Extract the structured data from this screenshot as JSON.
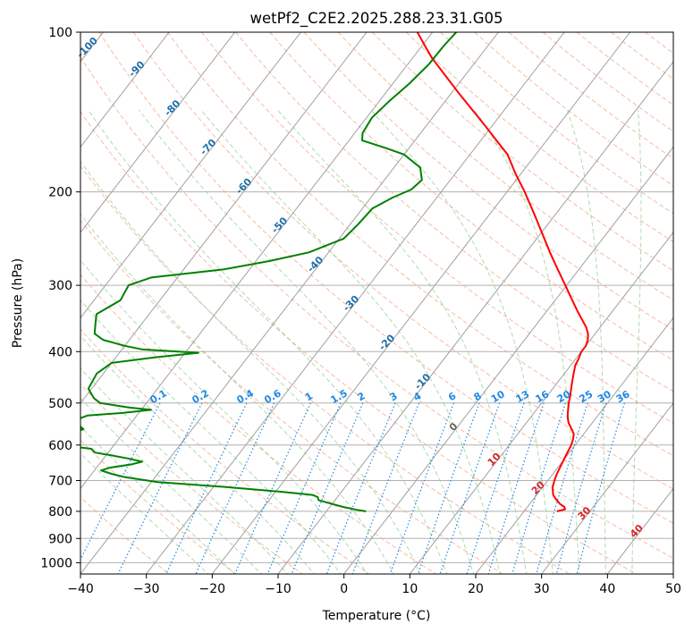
{
  "chart_data": {
    "type": "line",
    "title": "wetPf2_C2E2.2025.288.23.31.G05",
    "xlabel": "Temperature (°C)",
    "ylabel": "Pressure (hPa)",
    "xlim": [
      -40,
      50
    ],
    "ylim": [
      1050,
      100
    ],
    "y_scale": "log",
    "x_ticks": [
      "−40",
      "−30",
      "−20",
      "−10",
      "0",
      "10",
      "20",
      "30",
      "40",
      "50"
    ],
    "x_tick_values": [
      -40,
      -30,
      -20,
      -10,
      0,
      10,
      20,
      30,
      40,
      50
    ],
    "y_ticks": [
      "100",
      "200",
      "300",
      "400",
      "500",
      "600",
      "700",
      "800",
      "900",
      "1000"
    ],
    "y_tick_values": [
      100,
      200,
      300,
      400,
      500,
      600,
      700,
      800,
      900,
      1000
    ],
    "grid": true,
    "colors": {
      "temperature": "#ff0000",
      "dewpoint": "#008000",
      "isotherm": "#a0a0a0",
      "dry_adiabat": "#f4a582",
      "moist_adiabat": "#8fcb8f",
      "mixing_ratio": "#1e88e5",
      "isotherm_label": "#1f6fa8",
      "warm_label": "#d62728"
    },
    "series": [
      {
        "key": "temperature",
        "p": [
          800,
          793,
          785,
          775,
          760,
          745,
          720,
          700,
          680,
          660,
          640,
          620,
          600,
          585,
          572,
          560,
          545,
          530,
          515,
          500,
          485,
          470,
          455,
          440,
          425,
          412,
          400,
          390,
          380,
          370,
          360,
          350,
          335,
          320,
          300,
          280,
          260,
          240,
          220,
          200,
          185,
          170,
          160,
          150,
          140,
          130,
          120,
          112,
          106,
          100
        ],
        "t": [
          25.0,
          26.0,
          25.6,
          24.6,
          23.5,
          22.5,
          21.5,
          21.0,
          20.6,
          20.3,
          20.0,
          19.7,
          19.4,
          19.0,
          18.5,
          17.6,
          16.4,
          15.5,
          14.8,
          14.1,
          13.5,
          12.8,
          12.1,
          11.4,
          10.7,
          10.4,
          10.0,
          10.0,
          9.6,
          8.9,
          7.9,
          6.6,
          4.6,
          2.6,
          -0.2,
          -3.2,
          -6.4,
          -9.7,
          -13.3,
          -17.3,
          -20.8,
          -24.3,
          -27.6,
          -31.1,
          -34.9,
          -39.0,
          -43.3,
          -47.0,
          -49.6,
          -52.3
        ]
      },
      {
        "key": "dewpoint",
        "p": [
          800,
          795,
          785,
          775,
          762,
          752,
          745,
          735,
          720,
          705,
          690,
          680,
          670,
          662,
          652,
          645,
          637,
          628,
          620,
          610,
          600,
          594,
          585,
          560,
          540,
          528,
          522,
          515,
          510,
          500,
          490,
          470,
          440,
          420,
          410,
          402,
          396,
          390,
          380,
          370,
          355,
          340,
          320,
          300,
          290,
          280,
          270,
          260,
          245,
          230,
          215,
          205,
          198,
          190,
          180,
          170,
          165,
          160,
          155,
          145,
          135,
          125,
          115,
          106,
          100
        ],
        "t": [
          -4.0,
          -5.5,
          -8.0,
          -10.0,
          -12.5,
          -13.0,
          -14.0,
          -19.0,
          -28.0,
          -39.0,
          -44.5,
          -47.0,
          -49.0,
          -48.0,
          -45.0,
          -43.8,
          -46.0,
          -49.0,
          -52.0,
          -53.0,
          -58.0,
          -59.5,
          -60.0,
          -56.5,
          -59.0,
          -57.5,
          -52.5,
          -48.5,
          -52.0,
          -57.0,
          -58.5,
          -60.5,
          -61.0,
          -60.0,
          -54.0,
          -48.0,
          -57.0,
          -60.0,
          -64.0,
          -66.0,
          -67.0,
          -68.0,
          -66.0,
          -66.5,
          -64.0,
          -54.0,
          -48.0,
          -43.0,
          -39.3,
          -38.8,
          -38.5,
          -36.7,
          -34.8,
          -34.3,
          -36.0,
          -40.0,
          -43.8,
          -48.0,
          -48.8,
          -49.2,
          -48.5,
          -47.5,
          -46.8,
          -46.7,
          -46.4
        ]
      }
    ],
    "isotherm_labels": [
      "-100",
      "-90",
      "-80",
      "-70",
      "-60",
      "-50",
      "-40",
      "-30",
      "-20",
      "-10",
      "0",
      "10",
      "20",
      "30",
      "40"
    ],
    "isotherm_label_values": [
      -100,
      -90,
      -80,
      -70,
      -60,
      -50,
      -40,
      -30,
      -20,
      -10,
      0,
      10,
      20,
      30,
      40
    ],
    "mixing_ratio_labels": [
      "0.1",
      "0.2",
      "0.4",
      "0.6",
      "1",
      "1.5",
      "2",
      "3",
      "4",
      "6",
      "8",
      "10",
      "13",
      "16",
      "20",
      "25",
      "30",
      "36"
    ],
    "mixing_ratio_values": [
      0.1,
      0.2,
      0.4,
      0.6,
      1,
      1.5,
      2,
      3,
      4,
      6,
      8,
      10,
      13,
      16,
      20,
      25,
      30,
      36
    ]
  }
}
